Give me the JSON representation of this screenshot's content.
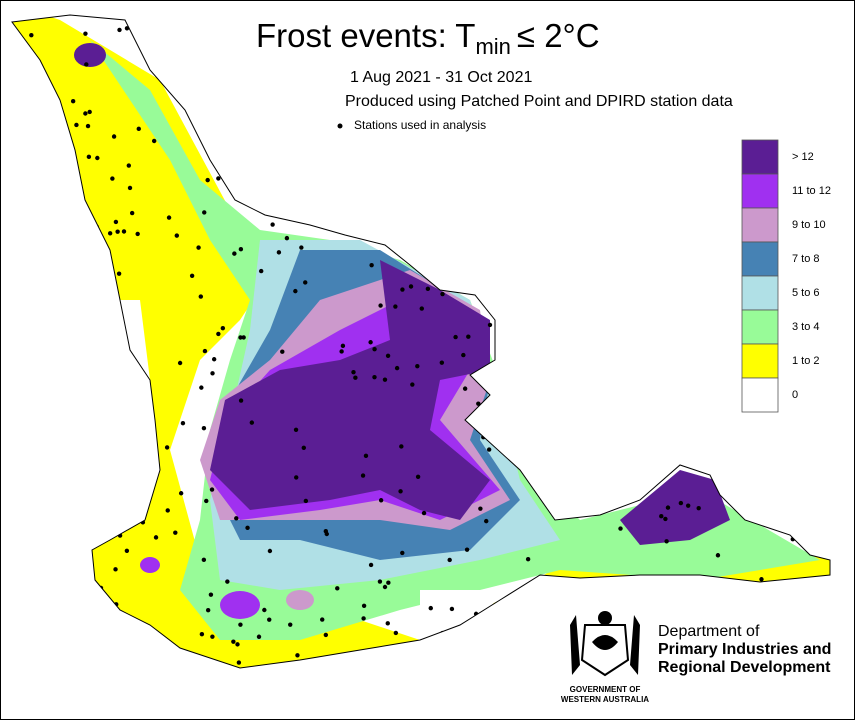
{
  "title": {
    "main": "Frost events:  T",
    "subscript": "min",
    "rest": "≤  2°C"
  },
  "period": "1 Aug 2021 - 31 Oct 2021",
  "source": "Produced using Patched Point and DPIRD station data",
  "stations_label": "Stations used in analysis",
  "legend": [
    {
      "label": "> 12",
      "color": "#5b1e94"
    },
    {
      "label": "11 to 12",
      "color": "#a030f0"
    },
    {
      "label": "9 to 10",
      "color": "#cc99cc"
    },
    {
      "label": "7 to 8",
      "color": "#4682b4"
    },
    {
      "label": "5 to 6",
      "color": "#b0e0e6"
    },
    {
      "label": "3 to 4",
      "color": "#98fb98"
    },
    {
      "label": "1 to 2",
      "color": "#ffff00"
    },
    {
      "label": "0",
      "color": "#ffffff"
    }
  ],
  "logo": {
    "line1": "Department of",
    "line2": "Primary Industries and",
    "line3": "Regional Development",
    "gov1": "GOVERNMENT OF",
    "gov2": "WESTERN AUSTRALIA"
  }
}
